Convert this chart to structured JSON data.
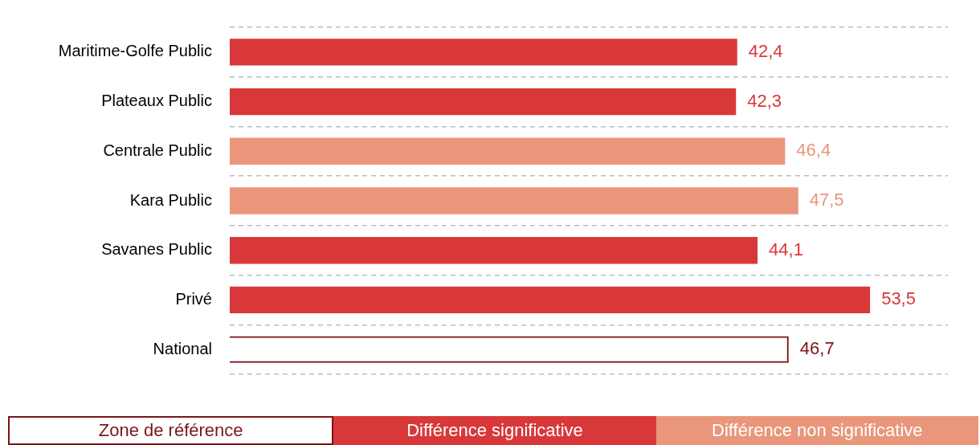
{
  "chart_data": {
    "type": "bar",
    "orientation": "horizontal",
    "categories": [
      "Maritime-Golfe Public",
      "Plateaux Public",
      "Centrale Public",
      "Kara Public",
      "Savanes Public",
      "Privé",
      "National"
    ],
    "series": [
      {
        "name": "Zone de référence",
        "color": "#7b1416",
        "values": [
          null,
          null,
          null,
          null,
          null,
          null,
          46.7
        ],
        "value_labels": [
          null,
          null,
          null,
          null,
          null,
          null,
          "46,7"
        ]
      },
      {
        "name": "Différence significative",
        "color": "#d9383a",
        "values": [
          42.4,
          42.3,
          null,
          null,
          44.1,
          53.5,
          null
        ],
        "value_labels": [
          "42,4",
          "42,3",
          null,
          null,
          "44,1",
          "53,5",
          null
        ]
      },
      {
        "name": "Différence non significative",
        "color": "#e9967a",
        "values": [
          null,
          null,
          46.4,
          47.5,
          null,
          null,
          null
        ],
        "value_labels": [
          null,
          null,
          "46,4",
          "47,5",
          null,
          null,
          null
        ]
      }
    ],
    "tick_labels": "y",
    "grid": "y",
    "legend": "bottom"
  }
}
